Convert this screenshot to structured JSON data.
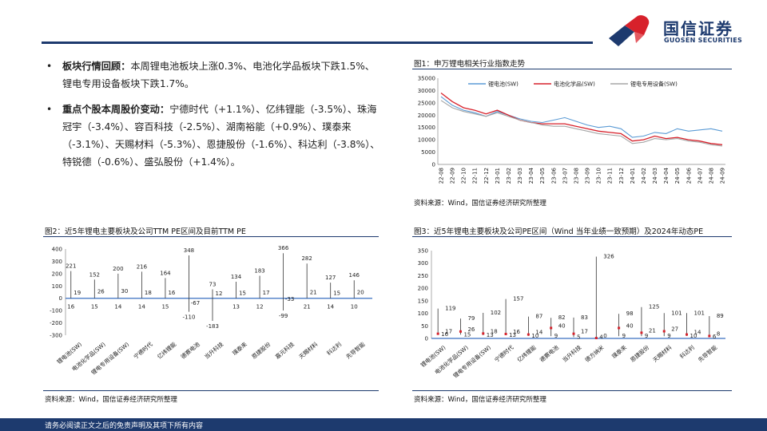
{
  "header": {
    "logo_cn": "国信证券",
    "logo_en": "GUOSEN SECURITIES",
    "colors": {
      "navy": "#1d3a6e",
      "red": "#d7212b"
    }
  },
  "bullets": [
    {
      "title": "板块行情回顾：",
      "body": "本周锂电池板块上涨0.3%、电池化学品板块下跌1.5%、锂电专用设备板块下跌1.7%。"
    },
    {
      "title": "重点个股本周股价变动：",
      "body": "宁德时代（+1.1%）、亿纬锂能（-3.5%）、珠海冠宇（-3.4%）、容百科技（-2.5%）、湖南裕能（+0.9%）、璞泰来（-3.1%）、天赐材料（-5.3%）、恩捷股份（-1.6%）、科达利（-3.8%）、特锐德（-0.6%）、盛弘股份（+1.4%）。"
    }
  ],
  "fig1": {
    "caption": "图1：申万锂电相关行业指数走势",
    "source": "资料来源：Wind，国信证券经济研究所整理"
  },
  "fig2": {
    "caption": "图2：近5年锂电主要板块及公司TTM PE区间及目前TTM PE",
    "source": "资料来源：Wind，国信证券经济研究所整理"
  },
  "fig3": {
    "caption": "图3：近5年锂电主要板块及公司PE区间（Wind 当年业绩一致预期）及2024年动态PE",
    "source": "资料来源：Wind，国信证券经济研究所整理"
  },
  "footer": {
    "text": "请务必阅读正文之后的免责声明及其项下所有内容"
  },
  "chart_data": [
    {
      "type": "line",
      "x": [
        "22-08",
        "22-09",
        "22-10",
        "22-11",
        "22-12",
        "23-01",
        "23-02",
        "23-03",
        "23-04",
        "23-05",
        "23-06",
        "23-07",
        "23-08",
        "23-09",
        "23-10",
        "23-11",
        "23-12",
        "24-01",
        "24-02",
        "24-03",
        "24-04",
        "24-05",
        "24-06",
        "24-07",
        "24-08",
        "24-09"
      ],
      "ylim": [
        0,
        35000
      ],
      "yticks": [
        0,
        5000,
        10000,
        15000,
        20000,
        25000,
        30000,
        35000
      ],
      "legend_position": "top",
      "series": [
        {
          "name": "锂电池(SW)",
          "color": "#5b9bd5",
          "values": [
            27500,
            24000,
            22000,
            21000,
            19500,
            21500,
            20000,
            18500,
            17500,
            17000,
            18000,
            19000,
            17500,
            16000,
            15000,
            15500,
            14500,
            11000,
            11500,
            13000,
            12500,
            14500,
            13500,
            14000,
            14500,
            13500
          ]
        },
        {
          "name": "电池化学品(SW)",
          "color": "#d7212b",
          "values": [
            29000,
            25500,
            23000,
            22000,
            20500,
            22000,
            20000,
            18000,
            17000,
            16500,
            16500,
            16500,
            15500,
            14500,
            13500,
            13000,
            12500,
            9500,
            10000,
            11500,
            10500,
            11000,
            10000,
            9500,
            8500,
            8000
          ]
        },
        {
          "name": "锂电专用设备(SW)",
          "color": "#a6a6a6",
          "values": [
            26000,
            23000,
            21500,
            20500,
            19500,
            21000,
            19500,
            18000,
            17000,
            16000,
            15500,
            15500,
            14500,
            13500,
            12500,
            12000,
            11500,
            8500,
            9000,
            10500,
            10000,
            10500,
            9500,
            9000,
            8000,
            7500
          ]
        }
      ]
    },
    {
      "type": "bar",
      "categories": [
        "锂电池(SW)",
        "电池化学品(SW)",
        "锂电专用设备(SW)",
        "宁德时代",
        "亿纬锂能",
        "德赛电池",
        "当升科技",
        "璞泰来",
        "恩捷股份",
        "嘉元科技",
        "天赐材料",
        "科达利",
        "先导智能"
      ],
      "ylim": [
        -300,
        400
      ],
      "yticks": [
        -300,
        -200,
        -100,
        0,
        100,
        200,
        300,
        400
      ],
      "max": [
        221,
        152,
        200,
        216,
        164,
        348,
        73,
        134,
        183,
        366,
        282,
        127,
        146
      ],
      "median": [
        19,
        26,
        30,
        18,
        16,
        -67,
        12,
        15,
        17,
        -33,
        21,
        15,
        20
      ],
      "min": [
        16,
        15,
        14,
        14,
        15,
        -110,
        -183,
        13,
        12,
        -99,
        21,
        14,
        10
      ]
    },
    {
      "type": "bar",
      "categories": [
        "锂电池(SW)",
        "电池化学品(SW)",
        "锂电专用设备(SW)",
        "宁德时代",
        "亿纬锂能",
        "德赛电池",
        "当升科技",
        "德方纳米",
        "璞泰来",
        "恩捷股份",
        "天赐材料",
        "科达利",
        "先导智能"
      ],
      "ylim": [
        0,
        350
      ],
      "yticks": [
        0,
        50,
        100,
        150,
        200,
        250,
        300,
        350
      ],
      "max": [
        119,
        79,
        102,
        157,
        87,
        82,
        83,
        326,
        98,
        125,
        101,
        101,
        89
      ],
      "current": [
        17,
        26,
        18,
        16,
        14,
        40,
        17,
        0,
        40,
        21,
        27,
        14,
        8
      ],
      "min": [
        16,
        15,
        13,
        13,
        10,
        9,
        5,
        4,
        9,
        9,
        9,
        10,
        6
      ]
    }
  ]
}
